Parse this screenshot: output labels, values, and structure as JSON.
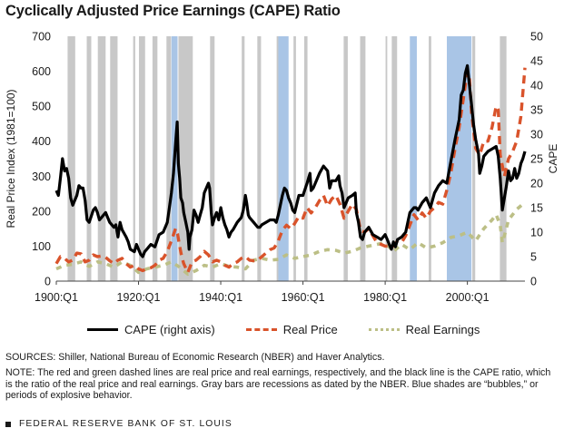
{
  "title": "Cyclically Adjusted Price Earnings (CAPE) Ratio",
  "sources": "SOURCES: Shiller, National Bureau of Economic Research (NBER) and Haver Analytics.",
  "note": "NOTE: The red and green dashed lines are real price and real earnings, respectively, and the black line is the CAPE ratio, which is the ratio of the real price and real earnings. Gray bars are recessions as dated by the NBER. Blue shades are “bubbles,” or periods of explosive behavior.",
  "footer": "FEDERAL RESERVE BANK OF ST. LOUIS",
  "legend": {
    "cape": "CAPE (right axis)",
    "price": "Real Price",
    "earnings": "Real Earnings"
  },
  "colors": {
    "cape": "#000000",
    "price": "#d9532b",
    "earnings": "#bcbf86",
    "recession": "#c8c8c8",
    "bubble": "#a9c5e6"
  },
  "chart_data": {
    "type": "line",
    "title": "Cyclically Adjusted Price Earnings (CAPE) Ratio",
    "xlabel": "",
    "ylabel_left": "Real Price Index (1981=100)",
    "ylabel_right": "CAPE",
    "x_range": [
      1900,
      2014
    ],
    "x_ticks": [
      "1900:Q1",
      "1920:Q1",
      "1940:Q1",
      "1960:Q1",
      "1980:Q1",
      "2000:Q1"
    ],
    "x_tick_values": [
      1900,
      1920,
      1940,
      1960,
      1980,
      2000
    ],
    "y_left": {
      "range": [
        0,
        700
      ],
      "ticks": [
        0,
        100,
        200,
        300,
        400,
        500,
        600,
        700
      ]
    },
    "y_right": {
      "range": [
        0,
        50
      ],
      "ticks": [
        0,
        5,
        10,
        15,
        20,
        25,
        30,
        35,
        40,
        45,
        50
      ]
    },
    "grid": false,
    "legend_position": "bottom",
    "recessions": [
      [
        1902.75,
        1904.6
      ],
      [
        1907.4,
        1908.5
      ],
      [
        1910.1,
        1912.0
      ],
      [
        1913.1,
        1914.9
      ],
      [
        1918.7,
        1919.2
      ],
      [
        1920.1,
        1921.6
      ],
      [
        1923.4,
        1924.6
      ],
      [
        1926.8,
        1927.9
      ],
      [
        1929.7,
        1933.2
      ],
      [
        1937.4,
        1938.5
      ],
      [
        1945.1,
        1945.8
      ],
      [
        1948.9,
        1949.8
      ],
      [
        1953.6,
        1954.4
      ],
      [
        1957.7,
        1958.3
      ],
      [
        1960.3,
        1961.1
      ],
      [
        1969.9,
        1970.9
      ],
      [
        1973.9,
        1975.2
      ],
      [
        1980.1,
        1980.5
      ],
      [
        1981.6,
        1982.9
      ],
      [
        1990.6,
        1991.2
      ],
      [
        2001.2,
        2001.9
      ],
      [
        2007.9,
        2009.5
      ]
    ],
    "bubbles": [
      [
        1928.0,
        1929.5
      ],
      [
        1954.0,
        1956.5
      ],
      [
        1986.0,
        1987.7
      ],
      [
        1995.0,
        2001.0
      ]
    ],
    "series": [
      {
        "name": "CAPE (right axis)",
        "axis": "right",
        "x": [
          1900.0,
          1900.5,
          1901.0,
          1901.5,
          1902.0,
          1902.5,
          1903.0,
          1903.5,
          1904.0,
          1905.0,
          1905.5,
          1906.0,
          1906.5,
          1907.0,
          1907.5,
          1908.0,
          1909.0,
          1909.5,
          1910.0,
          1910.5,
          1911.0,
          1912.0,
          1913.0,
          1914.0,
          1914.5,
          1915.0,
          1915.5,
          1916.0,
          1917.0,
          1917.5,
          1918.0,
          1919.0,
          1919.5,
          1920.0,
          1920.5,
          1921.0,
          1921.5,
          1922.0,
          1923.0,
          1924.0,
          1925.0,
          1926.0,
          1927.0,
          1927.5,
          1928.0,
          1928.5,
          1929.0,
          1929.4,
          1929.7,
          1930.0,
          1930.3,
          1930.7,
          1931.0,
          1931.5,
          1932.0,
          1932.3,
          1932.5,
          1933.0,
          1933.5,
          1934.0,
          1934.5,
          1935.0,
          1935.5,
          1936.0,
          1936.5,
          1937.0,
          1937.3,
          1937.7,
          1938.0,
          1938.5,
          1939.0,
          1939.5,
          1940.0,
          1940.5,
          1941.0,
          1941.5,
          1942.0,
          1942.5,
          1943.0,
          1944.0,
          1945.0,
          1945.5,
          1946.0,
          1946.3,
          1946.7,
          1947.0,
          1948.0,
          1949.0,
          1949.5,
          1950.0,
          1951.0,
          1952.0,
          1953.0,
          1953.5,
          1954.0,
          1955.0,
          1955.5,
          1956.0,
          1956.5,
          1957.0,
          1957.5,
          1958.0,
          1959.0,
          1960.0,
          1961.0,
          1961.7,
          1962.0,
          1962.5,
          1963.0,
          1964.0,
          1965.0,
          1966.0,
          1966.5,
          1967.0,
          1968.0,
          1968.7,
          1969.0,
          1969.5,
          1970.0,
          1970.5,
          1971.0,
          1972.0,
          1972.7,
          1973.0,
          1973.5,
          1974.0,
          1974.5,
          1975.0,
          1976.0,
          1977.0,
          1978.0,
          1979.0,
          1980.0,
          1980.5,
          1981.0,
          1981.5,
          1982.0,
          1982.5,
          1983.0,
          1984.0,
          1985.0,
          1986.0,
          1987.0,
          1987.5,
          1988.0,
          1989.0,
          1990.0,
          1990.5,
          1991.0,
          1992.0,
          1993.0,
          1994.0,
          1995.0,
          1996.0,
          1997.0,
          1998.0,
          1998.5,
          1999.0,
          1999.5,
          2000.0,
          2000.5,
          2001.0,
          2001.5,
          2002.0,
          2002.7,
          2003.0,
          2003.5,
          2004.0,
          2005.0,
          2006.0,
          2007.0,
          2007.5,
          2008.0,
          2008.5,
          2009.0,
          2009.5,
          2010.0,
          2010.5,
          2011.0,
          2011.5,
          2012.0,
          2012.5,
          2013.0,
          2013.5,
          2014.0
        ],
        "values": [
          18.5,
          17.5,
          21.0,
          25.0,
          22.5,
          23.0,
          21.0,
          17.0,
          15.5,
          17.5,
          19.5,
          19.0,
          19.0,
          16.5,
          12.5,
          12.0,
          14.5,
          15.0,
          14.0,
          12.5,
          13.0,
          14.0,
          12.0,
          11.0,
          11.5,
          9.0,
          12.0,
          10.5,
          9.0,
          8.0,
          6.5,
          6.0,
          7.5,
          6.5,
          5.5,
          5.0,
          6.0,
          6.5,
          7.5,
          7.0,
          9.5,
          10.0,
          12.0,
          15.0,
          18.0,
          22.0,
          28.0,
          32.5,
          24.0,
          21.0,
          17.0,
          16.0,
          14.0,
          12.0,
          10.0,
          6.5,
          9.0,
          10.5,
          14.5,
          13.5,
          12.0,
          13.5,
          15.0,
          18.0,
          19.0,
          20.0,
          19.0,
          14.0,
          11.5,
          13.0,
          14.0,
          12.5,
          15.0,
          13.0,
          11.5,
          10.5,
          9.0,
          10.0,
          10.5,
          12.0,
          13.0,
          14.5,
          17.5,
          16.0,
          13.5,
          13.0,
          12.0,
          11.0,
          11.0,
          11.5,
          12.0,
          12.5,
          12.5,
          12.0,
          13.5,
          17.5,
          19.0,
          18.5,
          17.0,
          16.0,
          14.5,
          14.0,
          17.5,
          17.5,
          20.0,
          22.0,
          18.5,
          19.0,
          20.0,
          22.0,
          23.5,
          22.5,
          19.0,
          20.5,
          20.5,
          21.5,
          19.5,
          18.0,
          15.0,
          16.0,
          17.0,
          17.5,
          18.0,
          14.0,
          12.0,
          9.0,
          8.5,
          10.0,
          11.0,
          9.5,
          9.0,
          8.5,
          9.5,
          8.5,
          7.5,
          6.5,
          8.0,
          7.0,
          8.5,
          9.0,
          10.0,
          14.0,
          15.0,
          15.0,
          14.5,
          16.0,
          17.0,
          16.0,
          15.0,
          18.0,
          19.5,
          20.5,
          20.0,
          24.5,
          29.0,
          33.0,
          38.0,
          39.0,
          42.5,
          44.0,
          40.0,
          36.0,
          32.0,
          29.0,
          26.0,
          22.0,
          23.5,
          25.5,
          26.5,
          27.0,
          27.5,
          25.5,
          21.0,
          14.5,
          17.0,
          19.5,
          22.5,
          20.5,
          21.0,
          23.0,
          21.0,
          22.0,
          24.0,
          25.0,
          26.5
        ]
      },
      {
        "name": "Real Price",
        "axis": "left",
        "x": [
          1900.0,
          1901.0,
          1902.0,
          1903.0,
          1904.0,
          1905.0,
          1906.0,
          1907.0,
          1908.0,
          1909.0,
          1910.0,
          1911.0,
          1912.0,
          1913.0,
          1914.0,
          1915.0,
          1916.0,
          1917.0,
          1918.0,
          1919.0,
          1920.0,
          1921.0,
          1922.0,
          1923.0,
          1924.0,
          1925.0,
          1926.0,
          1927.0,
          1928.0,
          1929.0,
          1929.5,
          1930.0,
          1930.5,
          1931.0,
          1932.0,
          1932.5,
          1933.0,
          1934.0,
          1935.0,
          1936.0,
          1937.0,
          1938.0,
          1939.0,
          1940.0,
          1941.0,
          1942.0,
          1943.0,
          1944.0,
          1945.0,
          1946.0,
          1947.0,
          1948.0,
          1949.0,
          1950.0,
          1951.0,
          1952.0,
          1953.0,
          1954.0,
          1955.0,
          1956.0,
          1957.0,
          1958.0,
          1959.0,
          1960.0,
          1961.0,
          1962.0,
          1963.0,
          1964.0,
          1965.0,
          1966.0,
          1967.0,
          1968.0,
          1969.0,
          1970.0,
          1971.0,
          1972.0,
          1973.0,
          1974.0,
          1975.0,
          1976.0,
          1977.0,
          1978.0,
          1979.0,
          1980.0,
          1981.0,
          1982.0,
          1983.0,
          1984.0,
          1985.0,
          1986.0,
          1987.0,
          1988.0,
          1989.0,
          1990.0,
          1991.0,
          1992.0,
          1993.0,
          1994.0,
          1995.0,
          1996.0,
          1997.0,
          1998.0,
          1999.0,
          2000.0,
          2000.5,
          2001.0,
          2002.0,
          2003.0,
          2004.0,
          2005.0,
          2006.0,
          2007.0,
          2007.5,
          2008.0,
          2008.5,
          2009.0,
          2010.0,
          2011.0,
          2012.0,
          2013.0,
          2014.0
        ],
        "values": [
          50,
          70,
          65,
          55,
          60,
          80,
          78,
          55,
          60,
          75,
          70,
          72,
          68,
          58,
          50,
          60,
          65,
          50,
          40,
          45,
          35,
          30,
          35,
          38,
          45,
          60,
          65,
          85,
          115,
          150,
          135,
          100,
          70,
          50,
          25,
          40,
          55,
          60,
          70,
          85,
          75,
          55,
          60,
          55,
          45,
          40,
          50,
          55,
          65,
          70,
          60,
          58,
          60,
          70,
          80,
          90,
          95,
          115,
          145,
          160,
          150,
          165,
          185,
          180,
          210,
          195,
          210,
          230,
          245,
          215,
          235,
          245,
          220,
          180,
          200,
          220,
          205,
          145,
          140,
          150,
          130,
          110,
          105,
          100,
          100,
          100,
          115,
          110,
          130,
          160,
          190,
          175,
          195,
          180,
          200,
          210,
          225,
          220,
          260,
          310,
          380,
          440,
          520,
          600,
          580,
          480,
          380,
          360,
          400,
          400,
          440,
          500,
          490,
          360,
          330,
          300,
          350,
          370,
          400,
          470,
          610
        ]
      },
      {
        "name": "Real Earnings",
        "axis": "left",
        "x": [
          1900.0,
          1902.0,
          1904.0,
          1906.0,
          1908.0,
          1910.0,
          1912.0,
          1914.0,
          1916.0,
          1918.0,
          1920.0,
          1922.0,
          1924.0,
          1926.0,
          1928.0,
          1930.0,
          1932.0,
          1934.0,
          1936.0,
          1938.0,
          1940.0,
          1942.0,
          1944.0,
          1946.0,
          1948.0,
          1950.0,
          1952.0,
          1954.0,
          1956.0,
          1958.0,
          1960.0,
          1962.0,
          1964.0,
          1966.0,
          1968.0,
          1970.0,
          1972.0,
          1974.0,
          1976.0,
          1978.0,
          1980.0,
          1982.0,
          1984.0,
          1986.0,
          1988.0,
          1990.0,
          1992.0,
          1994.0,
          1996.0,
          1998.0,
          2000.0,
          2002.0,
          2004.0,
          2006.0,
          2007.0,
          2008.0,
          2008.5,
          2009.0,
          2010.0,
          2012.0,
          2014.0
        ],
        "values": [
          35,
          45,
          48,
          55,
          42,
          55,
          50,
          40,
          55,
          45,
          25,
          35,
          40,
          45,
          55,
          40,
          20,
          30,
          45,
          40,
          50,
          42,
          40,
          35,
          60,
          65,
          60,
          62,
          75,
          65,
          70,
          75,
          85,
          90,
          88,
          80,
          85,
          95,
          100,
          105,
          110,
          85,
          105,
          90,
          110,
          95,
          100,
          110,
          125,
          130,
          140,
          115,
          150,
          175,
          190,
          160,
          110,
          130,
          175,
          205,
          225
        ]
      }
    ]
  }
}
